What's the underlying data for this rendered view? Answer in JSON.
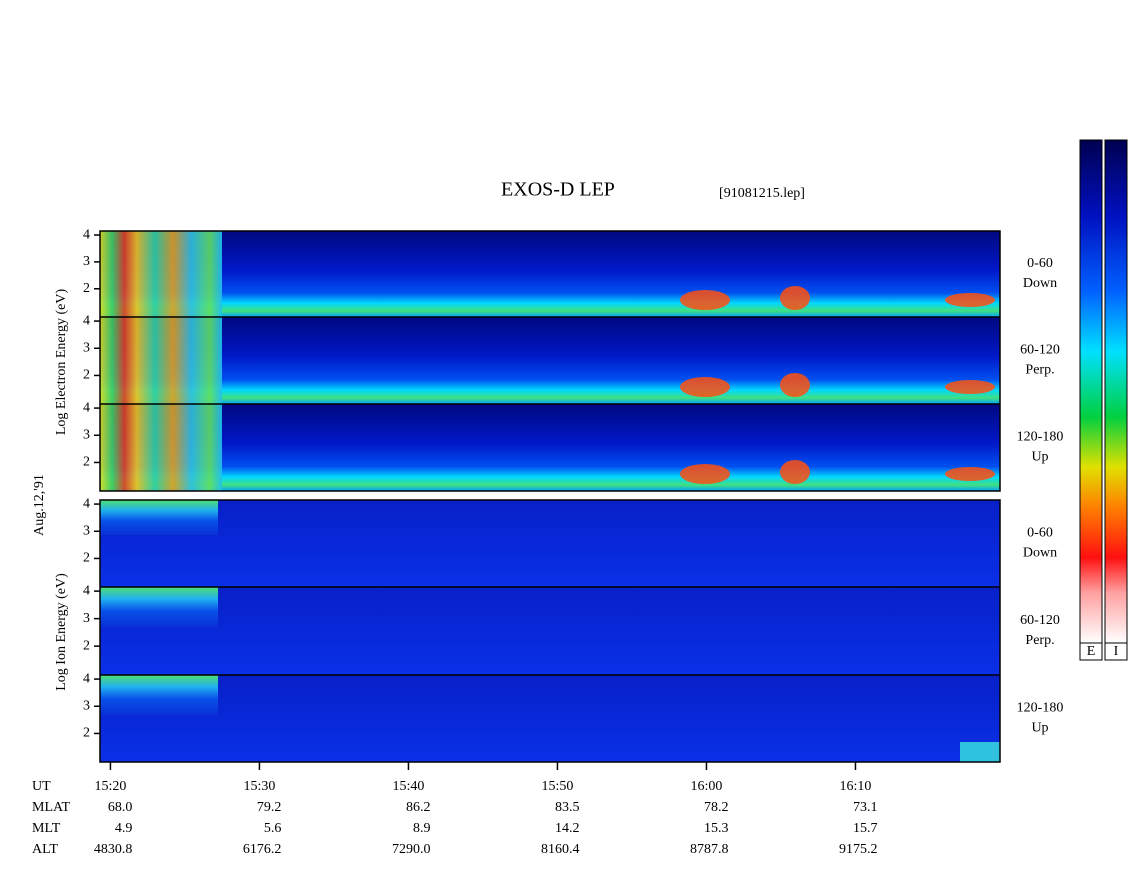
{
  "chart_data": {
    "type": "spectrogram",
    "title": "EXOS-D LEP",
    "file": "[91081215.lep]",
    "date_label": "Aug.12,'91",
    "groups": [
      {
        "ylabel": "Log Electron Energy (eV)",
        "panels": [
          {
            "angle": "0-60",
            "direction": "Down"
          },
          {
            "angle": "60-120",
            "direction": "Perp."
          },
          {
            "angle": "120-180",
            "direction": "Up"
          }
        ]
      },
      {
        "ylabel": "Log Ion Energy (eV)",
        "panels": [
          {
            "angle": "0-60",
            "direction": "Down"
          },
          {
            "angle": "60-120",
            "direction": "Perp."
          },
          {
            "angle": "120-180",
            "direction": "Up"
          }
        ]
      }
    ],
    "ylim": [
      0.95,
      4.15
    ],
    "yticks": [
      2,
      3,
      4
    ],
    "xlim": [
      919.3,
      979.7
    ],
    "xticks": [
      {
        "value": 920,
        "label": "15:20"
      },
      {
        "value": 930,
        "label": "15:30"
      },
      {
        "value": 940,
        "label": "15:40"
      },
      {
        "value": 950,
        "label": "15:50"
      },
      {
        "value": 960,
        "label": "16:00"
      },
      {
        "value": 970,
        "label": "16:10"
      }
    ],
    "rows": [
      {
        "label": "UT"
      },
      {
        "label": "MLAT",
        "values": [
          "68.0",
          "79.2",
          "86.2",
          "83.5",
          "78.2",
          "73.1"
        ]
      },
      {
        "label": "MLT",
        "values": [
          "4.9",
          "5.6",
          "8.9",
          "14.2",
          "15.3",
          "15.7"
        ]
      },
      {
        "label": "ALT",
        "values": [
          "4830.8",
          "6176.2",
          "7290.0",
          "8160.4",
          "8787.8",
          "9175.2"
        ]
      }
    ],
    "colorbar_labels": [
      "E",
      "I"
    ]
  }
}
